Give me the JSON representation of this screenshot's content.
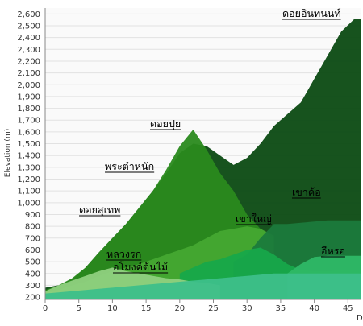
{
  "chart_data": {
    "type": "area",
    "y_label": "Elevation (m)",
    "x_label": "D",
    "x": [
      0,
      2,
      4,
      6,
      8,
      10,
      12,
      14,
      16,
      18,
      20,
      22,
      24,
      26,
      28,
      30,
      32,
      34,
      36,
      38,
      40,
      42,
      44,
      46,
      47
    ],
    "xlim": [
      0,
      47
    ],
    "xticks": [
      0,
      5,
      10,
      15,
      20,
      25,
      30,
      35,
      40,
      45
    ],
    "ylim": [
      180,
      2650
    ],
    "yticks": [
      200,
      300,
      400,
      500,
      600,
      700,
      800,
      900,
      {
        "value": 1000,
        "label": "1,000"
      },
      {
        "value": 1100,
        "label": "1,100"
      },
      {
        "value": 1200,
        "label": "1,200"
      },
      {
        "value": 1300,
        "label": "1,300"
      },
      {
        "value": 1400,
        "label": "1,400"
      },
      {
        "value": 1500,
        "label": "1,500"
      },
      {
        "value": 1600,
        "label": "1,600"
      },
      {
        "value": 1700,
        "label": "1,700"
      },
      {
        "value": 1800,
        "label": "1,800"
      },
      {
        "value": 1900,
        "label": "1,900"
      },
      {
        "value": 2000,
        "label": "2,000"
      },
      {
        "value": 2100,
        "label": "2,100"
      },
      {
        "value": 2200,
        "label": "2,200"
      },
      {
        "value": 2300,
        "label": "2,300"
      },
      {
        "value": 2400,
        "label": "2,400"
      },
      {
        "value": 2500,
        "label": "2,500"
      },
      {
        "value": 2600,
        "label": "2,600"
      }
    ],
    "grid": true,
    "series": [
      {
        "color": "#0b4a12",
        "values": [
          280,
          300,
          350,
          450,
          580,
          700,
          820,
          960,
          1100,
          1250,
          1420,
          1500,
          1480,
          1400,
          1320,
          1380,
          1500,
          1650,
          1750,
          1850,
          2050,
          2250,
          2450,
          2560,
          2560
        ]
      },
      {
        "color": "#2a8a1e",
        "values": [
          260,
          300,
          360,
          450,
          580,
          700,
          820,
          960,
          1100,
          1280,
          1480,
          1620,
          1450,
          1250,
          1100,
          900,
          780,
          700,
          null,
          null,
          null,
          null,
          null,
          null,
          null
        ]
      },
      {
        "color": "#45a832",
        "values": [
          250,
          260,
          300,
          330,
          380,
          420,
          450,
          480,
          520,
          560,
          600,
          640,
          700,
          760,
          780,
          800,
          780,
          720,
          null,
          null,
          null,
          null,
          null,
          null,
          null
        ]
      },
      {
        "color": "#1b7a3c",
        "values": [
          null,
          null,
          null,
          null,
          null,
          null,
          null,
          null,
          null,
          null,
          null,
          null,
          null,
          null,
          500,
          560,
          700,
          820,
          820,
          830,
          840,
          850,
          850,
          850,
          850
        ]
      },
      {
        "color": "#17a84a",
        "values": [
          null,
          null,
          null,
          null,
          null,
          null,
          null,
          null,
          null,
          null,
          400,
          450,
          500,
          520,
          560,
          600,
          620,
          560,
          480,
          430,
          420,
          420,
          430,
          430,
          430
        ]
      },
      {
        "color": "#8fd07f",
        "values": [
          250,
          300,
          340,
          380,
          420,
          450,
          420,
          400,
          380,
          360,
          350,
          330,
          320,
          300,
          null,
          null,
          null,
          null,
          null,
          null,
          null,
          null,
          null,
          null,
          null
        ]
      },
      {
        "color": "#2eb866",
        "values": [
          null,
          null,
          null,
          null,
          null,
          null,
          null,
          null,
          null,
          null,
          null,
          null,
          null,
          null,
          null,
          null,
          null,
          null,
          400,
          480,
          540,
          550,
          550,
          550,
          550
        ]
      },
      {
        "color": "#3dbf8a",
        "values": [
          230,
          240,
          250,
          260,
          270,
          280,
          290,
          300,
          310,
          320,
          330,
          340,
          350,
          360,
          370,
          380,
          390,
          400,
          400,
          400,
          400,
          400,
          400,
          400,
          400
        ]
      }
    ],
    "annotations": [
      "ดอยอินทนนท์",
      "ดอยปุย",
      "พระตำหนัก",
      "ดอยสุเทพ",
      "เขาใหญ่",
      "เขาค้อ",
      "หลวงรก",
      "อโมงค์ต้นไม้",
      "อีหรอ"
    ]
  }
}
